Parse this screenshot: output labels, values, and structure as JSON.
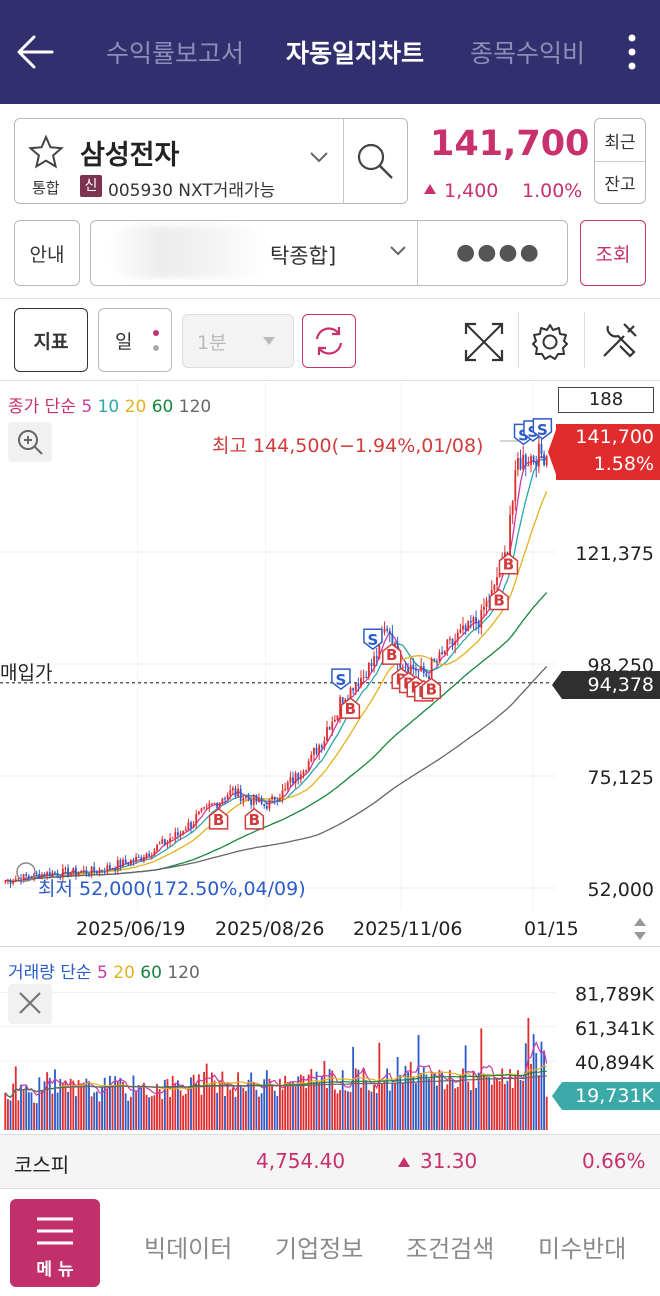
{
  "header": {
    "tabs": [
      "수익률보고서",
      "자동일지차트",
      "종목수익비"
    ],
    "active_tab": 1
  },
  "stock": {
    "name": "삼성전자",
    "market_badge": "통합",
    "credit_badge": "신",
    "code_text": "005930 NXT거래가능",
    "price": "141,700",
    "change": "1,400",
    "change_pct": "1.00%",
    "side_btn_top": "최근",
    "side_btn_bottom": "잔고"
  },
  "account": {
    "guide_label": "안내",
    "account_text": "탁종합]",
    "password_mask": "●●●●",
    "query_label": "조회"
  },
  "toolbar": {
    "indicator_label": "지표",
    "period_label": "일",
    "minute_label": "1분"
  },
  "price_chart": {
    "legend_prefix": "종가 단순",
    "ma_labels": [
      "5",
      "10",
      "20",
      "60",
      "120"
    ],
    "ma_colors": [
      "#c93aa8",
      "#2aa7a7",
      "#e2b21f",
      "#18863d",
      "#666666"
    ],
    "count_box": "188",
    "high_annotation": "최고 144,500(−1.94%,01/08)",
    "low_annotation": "최저 52,000(172.50%,04/09)",
    "buy_price_label": "매입가",
    "last_price_tag": "141,700",
    "last_change_tag": "1.58%",
    "buy_price_tag": "94,378",
    "date_labels": [
      "2025/06/19",
      "2025/08/26",
      "2025/11/06",
      "01/15"
    ]
  },
  "volume_chart": {
    "legend_prefix": "거래량 단순",
    "ma_labels": [
      "5",
      "20",
      "60",
      "120"
    ],
    "ma_colors": [
      "#c93aa8",
      "#e2b21f",
      "#18863d",
      "#666666"
    ],
    "last_volume_tag": "19,731K"
  },
  "index_bar": {
    "name": "코스피",
    "value": "4,754.40",
    "change": "31.30",
    "pct": "0.66%"
  },
  "bottom_nav": {
    "menu_label": "메 뉴",
    "items": [
      "빅데이터",
      "기업정보",
      "조건검색",
      "미수반대"
    ]
  },
  "chart_data": [
    {
      "type": "candlestick",
      "title": "",
      "y_ticks": [
        52000,
        75125,
        98250,
        121375
      ],
      "ylim": [
        52000,
        144500
      ],
      "x_ticks": [
        "2025/06/19",
        "2025/08/26",
        "2025/11/06",
        "01/15"
      ],
      "x_start": "2025/04/09",
      "x_end": "2026/01/23",
      "close_points": [
        [
          "2025/04/09",
          53500
        ],
        [
          "2025/05/01",
          55000
        ],
        [
          "2025/05/28",
          55500
        ],
        [
          "2025/06/19",
          58000
        ],
        [
          "2025/07/10",
          63000
        ],
        [
          "2025/07/25",
          68000
        ],
        [
          "2025/08/08",
          72000
        ],
        [
          "2025/08/26",
          69000
        ],
        [
          "2025/09/05",
          72000
        ],
        [
          "2025/09/22",
          80000
        ],
        [
          "2025/10/08",
          92000
        ],
        [
          "2025/10/22",
          98000
        ],
        [
          "2025/10/30",
          106000
        ],
        [
          "2025/11/06",
          99000
        ],
        [
          "2025/11/20",
          96000
        ],
        [
          "2025/12/05",
          103000
        ],
        [
          "2025/12/20",
          108000
        ],
        [
          "2025/12/31",
          118000
        ],
        [
          "2026/01/06",
          132000
        ],
        [
          "2026/01/08",
          140000
        ],
        [
          "2026/01/15",
          141000
        ],
        [
          "2026/01/23",
          141700
        ]
      ],
      "moving_averages": [
        "5",
        "10",
        "20",
        "60",
        "120"
      ],
      "high": 144500,
      "high_date": "01/08",
      "low": 52000,
      "low_date": "04/09",
      "last": 141700,
      "buy_price": 94378,
      "trade_markers": {
        "buy": [
          "2025/08/01",
          "2025/08/20",
          "2025/10/10",
          "2025/11/01",
          "2025/11/06",
          "2025/11/10",
          "2025/11/14",
          "2025/11/18",
          "2025/11/22",
          "2025/12/28",
          "2026/01/02"
        ],
        "sell": [
          "2025/10/05",
          "2025/10/22",
          "2026/01/10",
          "2026/01/15",
          "2026/01/20"
        ]
      }
    },
    {
      "type": "bar",
      "title": "",
      "y_ticks": [
        "19,731K",
        "40,894K",
        "61,341K",
        "81,789K"
      ],
      "last_value_k": 19731,
      "moving_averages": [
        "5",
        "20",
        "60",
        "120"
      ]
    }
  ]
}
